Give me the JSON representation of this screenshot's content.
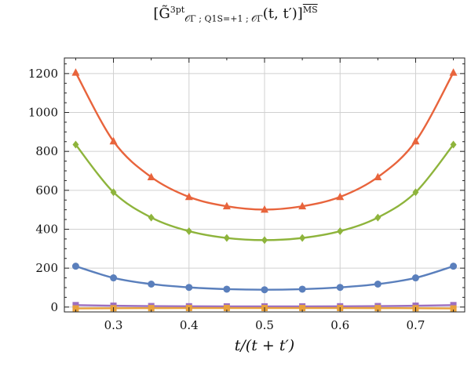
{
  "chart_data": {
    "type": "line",
    "title": "[G̃^{3pt}_{O_Γ ; Q_1^{S=+1} ; O_Γ}(t, t′)]^{MS}",
    "title_parts": {
      "main": "[G̃",
      "sup": "3pt",
      "sub": "𝒪Γ ; Q1S=+1 ; 𝒪Γ",
      "args": "(t, t′)]",
      "scheme": "MS"
    },
    "xlabel": "t/(t + t′)",
    "ylabel": "",
    "xlim": [
      0.235,
      0.765
    ],
    "ylim": [
      -25,
      1280
    ],
    "grid": true,
    "xticks": [
      0.3,
      0.4,
      0.5,
      0.6,
      0.7
    ],
    "xtick_labels": [
      "0.3",
      "0.4",
      "0.5",
      "0.6",
      "0.7"
    ],
    "yticks": [
      0,
      200,
      400,
      600,
      800,
      1000,
      1200
    ],
    "ytick_labels": [
      "0",
      "200",
      "400",
      "600",
      "800",
      "1000",
      "1200"
    ],
    "x": [
      0.25,
      0.3,
      0.35,
      0.4,
      0.45,
      0.5,
      0.55,
      0.6,
      0.65,
      0.7,
      0.75
    ],
    "series": [
      {
        "color": "#e8643c",
        "marker": "triangle",
        "values": [
          1205,
          852,
          668,
          566,
          518,
          501,
          518,
          566,
          668,
          852,
          1205
        ]
      },
      {
        "color": "#8eb43c",
        "marker": "diamond",
        "values": [
          835,
          590,
          460,
          390,
          355,
          344,
          355,
          390,
          460,
          590,
          835
        ]
      },
      {
        "color": "#5a7fbc",
        "marker": "circle",
        "values": [
          210,
          150,
          118,
          101,
          92,
          89,
          92,
          101,
          118,
          150,
          210
        ]
      },
      {
        "color": "#9d6fc0",
        "marker": "square",
        "values": [
          10,
          7,
          5,
          4,
          3.5,
          3.3,
          3.5,
          4,
          5,
          7,
          10
        ]
      },
      {
        "color": "#e8a13c",
        "marker": "square",
        "values": [
          -7,
          -6,
          -5.5,
          -5,
          -5,
          -5,
          -5,
          -5,
          -5.5,
          -6,
          -7
        ]
      }
    ]
  }
}
